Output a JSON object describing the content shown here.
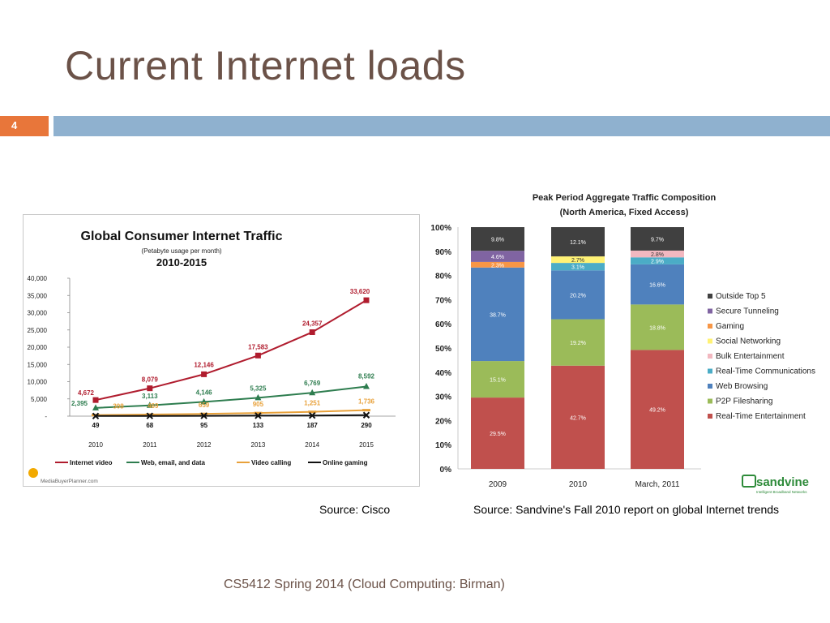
{
  "slide": {
    "title": "Current Internet loads",
    "number": "4",
    "source_left": "Source: Cisco",
    "source_right": "Source: Sandvine's Fall 2010 report on global Internet trends",
    "footer": "CS5412 Spring 2014 (Cloud Computing: Birman)"
  },
  "colors": {
    "title": "#6b5248",
    "accent_orange": "#e8763a",
    "bar_blue": "#8fb1cf"
  },
  "chart_data": [
    {
      "type": "line",
      "title": "Global Consumer Internet Traffic",
      "subtitle": "(Petabyte usage per month)",
      "subtitle2": "2010-2015",
      "x": [
        "2010",
        "2011",
        "2012",
        "2013",
        "2014",
        "2015"
      ],
      "ylim": [
        0,
        40000
      ],
      "yticks": [
        "40,000",
        "35,000",
        "30,000",
        "25,000",
        "20,000",
        "15,000",
        "10,000",
        "5,000",
        "-"
      ],
      "ytick_values": [
        40000,
        35000,
        30000,
        25000,
        20000,
        15000,
        10000,
        5000,
        0
      ],
      "grid": false,
      "legend_position": "bottom",
      "series": [
        {
          "name": "Internet video",
          "color": "#b01c2e",
          "marker": "square",
          "values": [
            4672,
            8079,
            12146,
            17583,
            24357,
            33620
          ],
          "labels": [
            "4,672",
            "8,079",
            "12,146",
            "17,583",
            "24,357",
            "33,620"
          ]
        },
        {
          "name": "Web, email, and data",
          "color": "#2e7d4f",
          "marker": "triangle",
          "values": [
            2395,
            3113,
            4146,
            5325,
            6769,
            8592
          ],
          "labels": [
            "2,395",
            "3,113",
            "4,146",
            "5,325",
            "6,769",
            "8,592"
          ]
        },
        {
          "name": "Video calling",
          "color": "#e8a13a",
          "marker": "dash",
          "values": [
            308,
            469,
            659,
            905,
            1251,
            1736
          ],
          "labels": [
            "308",
            "469",
            "659",
            "905",
            "1,251",
            "1,736"
          ]
        },
        {
          "name": "Online gaming",
          "color": "#111111",
          "marker": "x",
          "values": [
            49,
            68,
            95,
            133,
            187,
            290
          ],
          "labels": [
            "49",
            "68",
            "95",
            "133",
            "187",
            "290"
          ]
        }
      ],
      "watermark": "MediaBuyerPlanner.com",
      "source_note": "Source: Cisco"
    },
    {
      "type": "bar",
      "stacked": true,
      "title": "Peak Period Aggregate Traffic Composition",
      "subtitle": "(North America, Fixed Access)",
      "categories": [
        "2009",
        "2010",
        "March, 2011"
      ],
      "ylim": [
        0,
        100
      ],
      "yticks": [
        "100%",
        "90%",
        "80%",
        "70%",
        "60%",
        "50%",
        "40%",
        "30%",
        "20%",
        "10%",
        "0%"
      ],
      "ytick_values": [
        100,
        90,
        80,
        70,
        60,
        50,
        40,
        30,
        20,
        10,
        0
      ],
      "legend_position": "right",
      "series": [
        {
          "name": "Real-Time Entertainment",
          "color": "#c0504d",
          "values": [
            29.5,
            42.7,
            49.2
          ],
          "labels": [
            "29.5%",
            "42.7%",
            "49.2%"
          ]
        },
        {
          "name": "P2P Filesharing",
          "color": "#9bbb59",
          "values": [
            15.1,
            19.2,
            18.8
          ],
          "labels": [
            "15.1%",
            "19.2%",
            "18.8%"
          ]
        },
        {
          "name": "Web Browsing",
          "color": "#4f81bd",
          "values": [
            38.7,
            20.2,
            16.6
          ],
          "labels": [
            "38.7%",
            "20.2%",
            "16.6%"
          ]
        },
        {
          "name": "Real-Time Communications",
          "color": "#4bacc6",
          "values": [
            0,
            3.1,
            2.9
          ],
          "labels": [
            "",
            "3.1%",
            "2.9%"
          ]
        },
        {
          "name": "Bulk Entertainment",
          "color": "#f2b8c0",
          "values": [
            0,
            0,
            2.8
          ],
          "labels": [
            "",
            "",
            "2.8%"
          ]
        },
        {
          "name": "Social Networking",
          "color": "#fff275",
          "values": [
            0,
            2.7,
            0
          ],
          "labels": [
            "",
            "2.7%",
            ""
          ]
        },
        {
          "name": "Gaming",
          "color": "#f79646",
          "values": [
            2.3,
            0,
            0
          ],
          "labels": [
            "2.3%",
            "",
            ""
          ]
        },
        {
          "name": "Secure Tunneling",
          "color": "#8064a2",
          "values": [
            4.6,
            0,
            0
          ],
          "labels": [
            "4.6%",
            "",
            ""
          ]
        },
        {
          "name": "Outside Top 5",
          "color": "#404040",
          "values": [
            9.8,
            12.1,
            9.7
          ],
          "labels": [
            "9.8%",
            "12.1%",
            "9.7%"
          ]
        }
      ],
      "legend_order": [
        "Outside Top 5",
        "Secure Tunneling",
        "Gaming",
        "Social Networking",
        "Bulk Entertainment",
        "Real-Time Communications",
        "Web Browsing",
        "P2P Filesharing",
        "Real-Time Entertainment"
      ],
      "logo_text": "sandvine",
      "logo_tagline": "Intelligent Broadband Networks"
    }
  ]
}
